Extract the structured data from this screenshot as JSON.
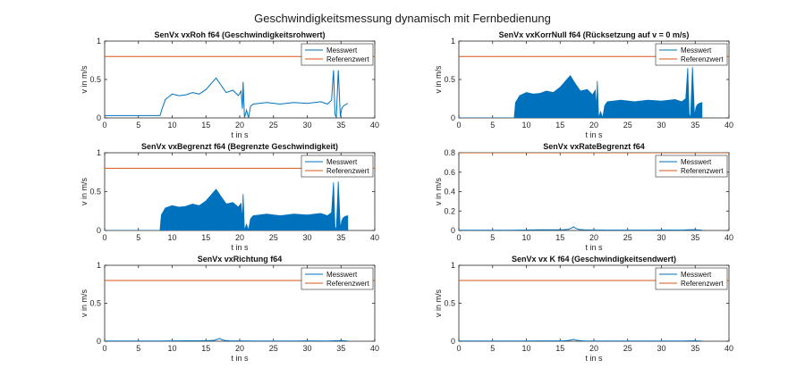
{
  "figure": {
    "title": "Geschwindigkeitsmessung dynamisch mit Fernbedienung"
  },
  "colors": {
    "messwert": "#0072BD",
    "referenzwert": "#D95319",
    "axis": "#262626"
  },
  "chart_data": [
    {
      "type": "line",
      "title": "SenVx vxRoh f64 (Geschwindigkeitsrohwert)",
      "xlabel": "t in s",
      "ylabel": "v in m/s",
      "xlim": [
        0,
        40
      ],
      "ylim": [
        0,
        1
      ],
      "xticks": [
        0,
        5,
        10,
        15,
        20,
        25,
        30,
        35,
        40
      ],
      "yticks": [
        0,
        0.5,
        1
      ],
      "legend": [
        "Messwert",
        "Referenzwert"
      ],
      "legend_location": "top-right",
      "reference": 0.8,
      "style": "line",
      "series": {
        "name": "Messwert",
        "x": [
          0,
          8.2,
          8.5,
          9,
          10,
          11,
          12,
          13,
          14,
          15,
          15.8,
          16.5,
          17.2,
          18,
          19,
          19.8,
          20.2,
          20.4,
          20.5,
          20.7,
          21,
          21.3,
          21.6,
          22,
          24,
          26,
          28,
          30,
          32,
          33,
          33.6,
          33.9,
          34.1,
          34.3,
          34.6,
          34.9,
          35.1,
          35.3,
          35.6,
          36
        ],
        "y": [
          0.03,
          0.03,
          0.12,
          0.24,
          0.31,
          0.29,
          0.3,
          0.33,
          0.31,
          0.37,
          0.45,
          0.52,
          0.43,
          0.33,
          0.36,
          0.29,
          0.35,
          0.12,
          0.47,
          0.0,
          0.1,
          0.0,
          0.15,
          0.18,
          0.2,
          0.18,
          0.2,
          0.19,
          0.21,
          0.18,
          0.23,
          0.62,
          0.05,
          0.0,
          0.62,
          0.02,
          0.12,
          0.15,
          0.17,
          0.19
        ]
      }
    },
    {
      "type": "area",
      "title": "SenVx vxKorrNull f64 (Rücksetzung auf v = 0 m/s)",
      "xlabel": "t in s",
      "ylabel": "v in m/s",
      "xlim": [
        0,
        40
      ],
      "ylim": [
        0,
        1
      ],
      "xticks": [
        0,
        5,
        10,
        15,
        20,
        25,
        30,
        35,
        40
      ],
      "yticks": [
        0,
        0.5,
        1
      ],
      "legend": [
        "Messwert",
        "Referenzwert"
      ],
      "legend_location": "top-right",
      "reference": 0.8,
      "style": "band",
      "series": {
        "name": "Messwert",
        "x": [
          0,
          8.2,
          8.4,
          9,
          10,
          11,
          12,
          13,
          14,
          15,
          15.8,
          16.5,
          17.2,
          18,
          19,
          19.8,
          20.2,
          20.4,
          20.5,
          20.7,
          21,
          21.3,
          21.6,
          22,
          24,
          26,
          28,
          30,
          32,
          33,
          33.6,
          33.9,
          34.1,
          34.3,
          34.6,
          34.9,
          35.1,
          35.3,
          35.6,
          36
        ],
        "y": [
          0,
          0,
          0.2,
          0.29,
          0.33,
          0.31,
          0.32,
          0.35,
          0.33,
          0.4,
          0.48,
          0.55,
          0.45,
          0.35,
          0.37,
          0.3,
          0.36,
          0.12,
          0.48,
          0.0,
          0.08,
          0.0,
          0.16,
          0.21,
          0.23,
          0.21,
          0.23,
          0.22,
          0.24,
          0.21,
          0.25,
          0.65,
          0.05,
          0.0,
          0.66,
          0.02,
          0.13,
          0.17,
          0.19,
          0.2
        ]
      }
    },
    {
      "type": "area",
      "title": "SenVx vxBegrenzt f64 (Begrenzte Geschwindigkeit)",
      "xlabel": "t in s",
      "ylabel": "v in m/s",
      "xlim": [
        0,
        40
      ],
      "ylim": [
        0,
        1
      ],
      "xticks": [
        0,
        5,
        10,
        15,
        20,
        25,
        30,
        35,
        40
      ],
      "yticks": [
        0,
        0.5,
        1
      ],
      "legend": [
        "Messwert",
        "Referenzwert"
      ],
      "legend_location": "top-right",
      "reference": 0.8,
      "style": "band",
      "series": {
        "name": "Messwert",
        "x": [
          0,
          8.2,
          8.4,
          9,
          10,
          11,
          12,
          13,
          14,
          15,
          15.8,
          16.5,
          17.2,
          18,
          19,
          19.8,
          20.2,
          20.4,
          20.5,
          20.7,
          21,
          21.3,
          21.6,
          22,
          24,
          26,
          28,
          30,
          32,
          33,
          33.6,
          33.9,
          34.1,
          34.3,
          34.6,
          34.9,
          35.1,
          35.3,
          35.6,
          36
        ],
        "y": [
          0,
          0,
          0.2,
          0.29,
          0.32,
          0.3,
          0.31,
          0.34,
          0.32,
          0.38,
          0.46,
          0.53,
          0.44,
          0.34,
          0.36,
          0.3,
          0.35,
          0.12,
          0.47,
          0.0,
          0.08,
          0.0,
          0.15,
          0.19,
          0.21,
          0.19,
          0.21,
          0.2,
          0.22,
          0.19,
          0.23,
          0.62,
          0.05,
          0.0,
          0.63,
          0.02,
          0.12,
          0.16,
          0.18,
          0.19
        ]
      }
    },
    {
      "type": "line",
      "title": "SenVx vxRateBegrenzt f64",
      "xlabel": "t in s",
      "ylabel": "v in m/s",
      "xlim": [
        0,
        40
      ],
      "ylim": [
        0,
        0.8
      ],
      "xticks": [
        0,
        5,
        10,
        15,
        20,
        25,
        30,
        35,
        40
      ],
      "yticks": [
        0,
        0.2,
        0.4,
        0.6,
        0.8
      ],
      "legend": [
        "Messwert",
        "Referenzwert"
      ],
      "legend_location": "top-right",
      "reference": 0.8,
      "style": "line",
      "series": {
        "name": "Messwert",
        "x": [
          0,
          8,
          10,
          12,
          14,
          15.5,
          16.2,
          16.7,
          17.0,
          17.3,
          17.8,
          18.5,
          20,
          22,
          25,
          28,
          30,
          33,
          34,
          35,
          36
        ],
        "y": [
          0.003,
          0.003,
          0.005,
          0.006,
          0.006,
          0.008,
          0.012,
          0.025,
          0.038,
          0.022,
          0.01,
          0.006,
          0.005,
          0.004,
          0.004,
          0.004,
          0.005,
          0.004,
          0.006,
          0.008,
          0.004
        ]
      }
    },
    {
      "type": "line",
      "title": "SenVx vxRichtung f64",
      "xlabel": "t in s",
      "ylabel": "v in m/s",
      "xlim": [
        0,
        40
      ],
      "ylim": [
        0,
        1
      ],
      "xticks": [
        0,
        5,
        10,
        15,
        20,
        25,
        30,
        35,
        40
      ],
      "yticks": [
        0,
        0.5,
        1
      ],
      "legend": [
        "Messwert",
        "Referenzwert"
      ],
      "legend_location": "top-right",
      "reference": 0.8,
      "style": "line",
      "series": {
        "name": "Messwert",
        "x": [
          0,
          8,
          10,
          12,
          14,
          15.5,
          16.2,
          16.7,
          17.0,
          17.3,
          17.8,
          18.5,
          20,
          22,
          25,
          28,
          30,
          33,
          34,
          35,
          36
        ],
        "y": [
          0.003,
          0.003,
          0.005,
          0.006,
          0.006,
          0.008,
          0.012,
          0.025,
          0.038,
          0.022,
          0.01,
          0.006,
          0.005,
          0.004,
          0.004,
          0.004,
          0.005,
          0.004,
          0.006,
          0.008,
          0.004
        ]
      }
    },
    {
      "type": "line",
      "title": "SenVx vx K f64 (Geschwindigkeitsendwert)",
      "xlabel": "t in s",
      "ylabel": "v in m/s",
      "xlim": [
        0,
        40
      ],
      "ylim": [
        0,
        1
      ],
      "xticks": [
        0,
        5,
        10,
        15,
        20,
        25,
        30,
        35,
        40
      ],
      "yticks": [
        0,
        0.5,
        1
      ],
      "legend": [
        "Messwert",
        "Referenzwert"
      ],
      "legend_location": "top-right",
      "reference": 0.8,
      "style": "line",
      "series": {
        "name": "Messwert",
        "x": [
          0,
          8,
          10,
          12,
          14,
          15.5,
          16.2,
          16.7,
          17.0,
          17.3,
          17.8,
          18.5,
          20,
          22,
          25,
          28,
          30,
          33,
          34,
          35,
          36
        ],
        "y": [
          0.003,
          0.003,
          0.004,
          0.005,
          0.005,
          0.006,
          0.01,
          0.018,
          0.025,
          0.015,
          0.008,
          0.005,
          0.004,
          0.004,
          0.003,
          0.004,
          0.004,
          0.004,
          0.005,
          0.006,
          0.004
        ]
      }
    }
  ]
}
